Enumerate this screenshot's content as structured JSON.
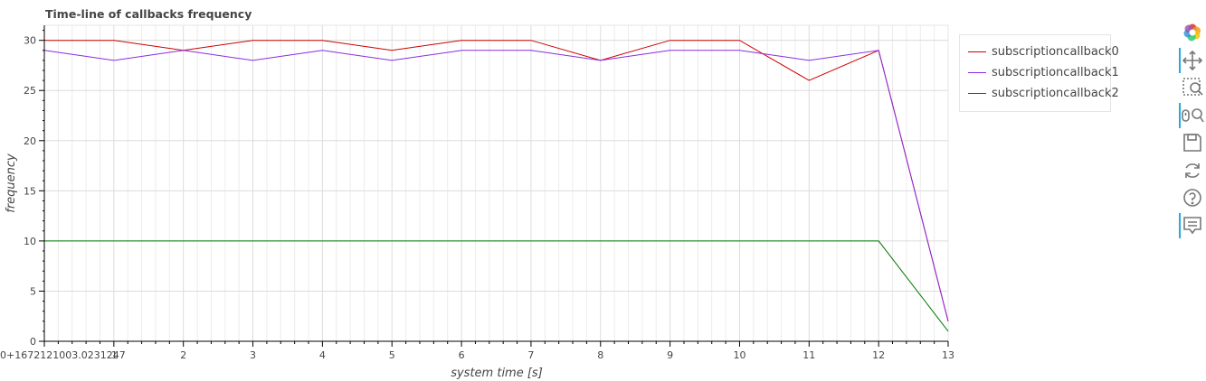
{
  "chart_data": {
    "type": "line",
    "title": "Time-line of callbacks frequency",
    "xlabel": "system time [s]",
    "ylabel": "frequency",
    "x_offset_label": "0+1672121003.0231247",
    "xlim": [
      0,
      13
    ],
    "ylim": [
      0,
      31.5
    ],
    "x_ticks": [
      1,
      2,
      3,
      4,
      5,
      6,
      7,
      8,
      9,
      10,
      11,
      12,
      13
    ],
    "x_tick_labels": [
      "1",
      "2",
      "3",
      "4",
      "5",
      "6",
      "7",
      "8",
      "9",
      "10",
      "11",
      "12",
      "13"
    ],
    "y_ticks": [
      0,
      5,
      10,
      15,
      20,
      25,
      30
    ],
    "y_tick_labels": [
      "0",
      "5",
      "10",
      "15",
      "20",
      "25",
      "30"
    ],
    "grid": true,
    "legend_position": "right",
    "x": [
      0,
      1,
      2,
      3,
      4,
      5,
      6,
      7,
      8,
      9,
      10,
      11,
      12,
      13
    ],
    "series": [
      {
        "name": "subscriptioncallback0",
        "color": "#cc0000",
        "values": [
          30,
          30,
          29,
          30,
          30,
          29,
          30,
          30,
          28,
          30,
          30,
          26,
          29,
          2
        ]
      },
      {
        "name": "subscriptioncallback1",
        "color": "#8a2be2",
        "values": [
          29,
          28,
          29,
          28,
          29,
          28,
          29,
          29,
          28,
          29,
          29,
          28,
          29,
          2
        ]
      },
      {
        "name": "subscriptioncallback2",
        "color": "#007800",
        "values": [
          10,
          10,
          10,
          10,
          10,
          10,
          10,
          10,
          10,
          10,
          10,
          10,
          10,
          1
        ]
      }
    ]
  },
  "toolbar": {
    "tools": [
      {
        "name": "bokeh-logo-icon",
        "active": false
      },
      {
        "name": "pan-icon",
        "active": true
      },
      {
        "name": "box-zoom-icon",
        "active": false
      },
      {
        "name": "wheel-zoom-icon",
        "active": true
      },
      {
        "name": "save-icon",
        "active": false
      },
      {
        "name": "reset-icon",
        "active": false
      },
      {
        "name": "help-icon",
        "active": false
      },
      {
        "name": "hover-icon",
        "active": true
      }
    ]
  }
}
